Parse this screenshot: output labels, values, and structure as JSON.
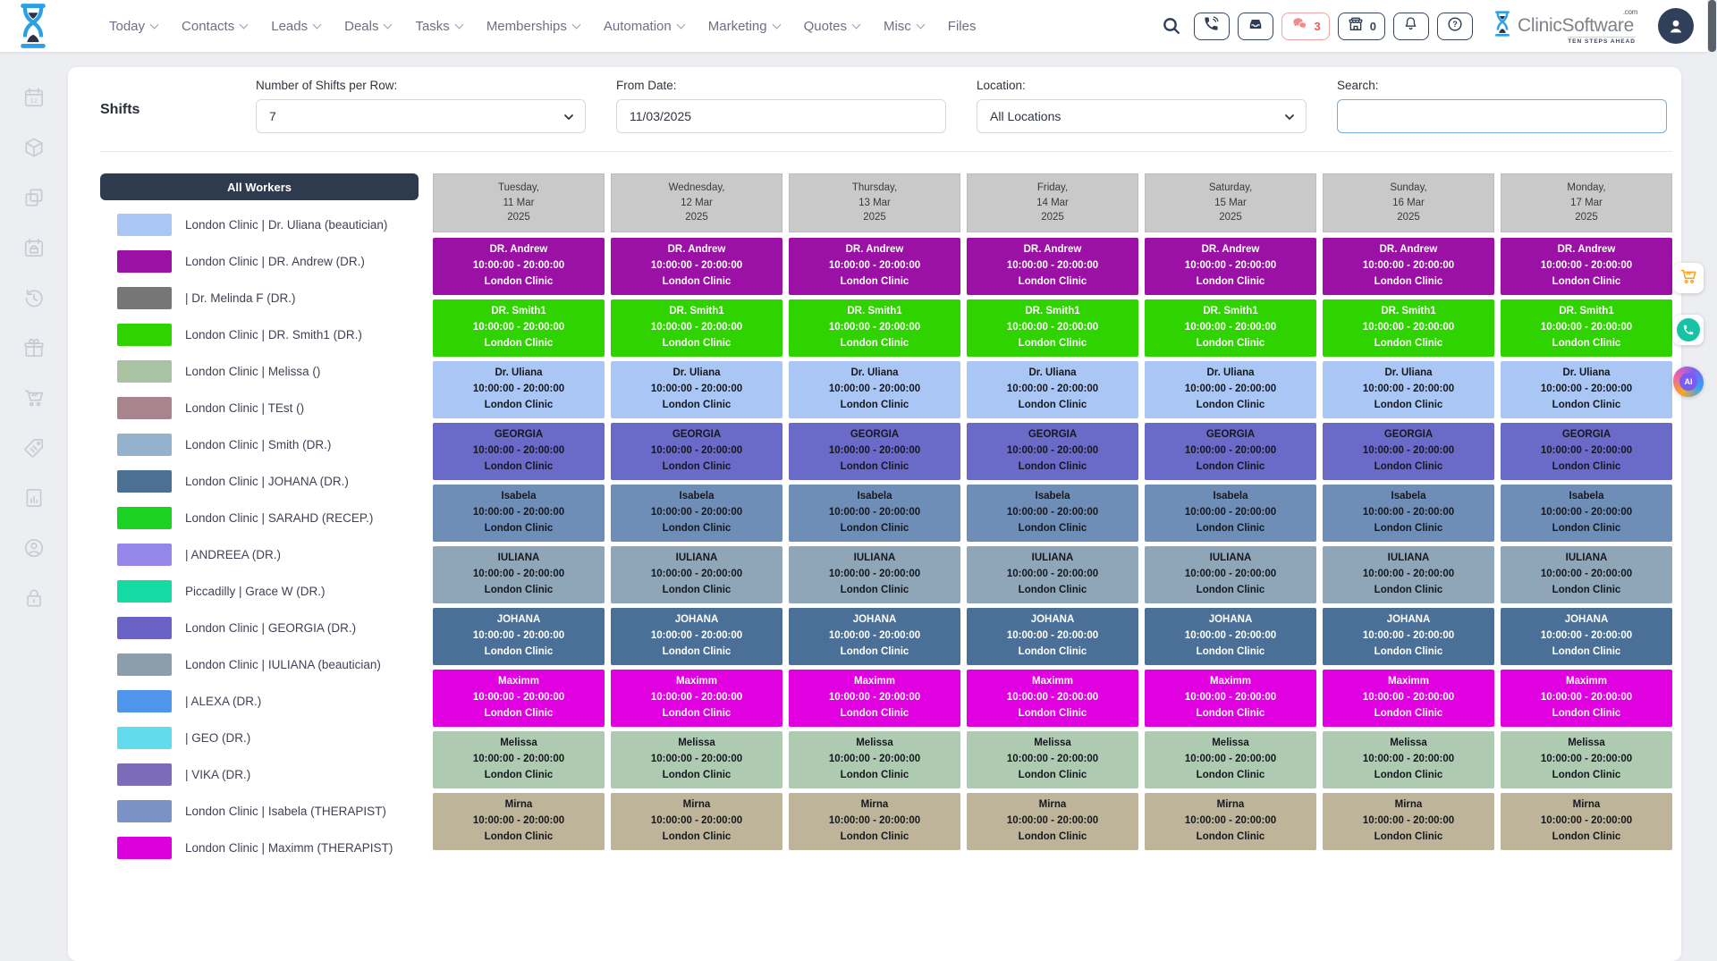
{
  "nav": {
    "items": [
      {
        "label": "Today",
        "chevron": true
      },
      {
        "label": "Contacts",
        "chevron": true
      },
      {
        "label": "Leads",
        "chevron": true
      },
      {
        "label": "Deals",
        "chevron": true
      },
      {
        "label": "Tasks",
        "chevron": true
      },
      {
        "label": "Memberships",
        "chevron": true
      },
      {
        "label": "Automation",
        "chevron": true
      },
      {
        "label": "Marketing",
        "chevron": true
      },
      {
        "label": "Quotes",
        "chevron": true
      },
      {
        "label": "Misc",
        "chevron": true
      },
      {
        "label": "Files",
        "chevron": false
      }
    ]
  },
  "topbar": {
    "chat_count": "3",
    "basket_count": "0",
    "icons": [
      "search-icon",
      "phone-call-icon",
      "inbox-icon",
      "chat-bubbles-icon",
      "storefront-icon",
      "bell-icon",
      "help-icon",
      "user-avatar-icon"
    ],
    "chat_accent": "#F08585",
    "icon_color": "#2E3D52"
  },
  "brand": {
    "name": "ClinicSoftware",
    "com": ".com",
    "tagline": "TEN STEPS AHEAD",
    "logo_icon": "hourglass-icon",
    "logo_blue": "#2AA0E6"
  },
  "rail_icons": [
    "calendar-12",
    "package",
    "copy",
    "calendar-bag",
    "history",
    "gift",
    "cart",
    "price-tag",
    "report",
    "account",
    "lock"
  ],
  "filters": {
    "title": "Shifts",
    "per_row": {
      "label": "Number of Shifts per Row:",
      "value": "7"
    },
    "from_date": {
      "label": "From Date:",
      "value": "11/03/2025"
    },
    "location": {
      "label": "Location:",
      "value": "All Locations"
    },
    "search": {
      "label": "Search:",
      "value": ""
    }
  },
  "workers": {
    "header": "All Workers",
    "items": [
      {
        "color": "#A9C6F5",
        "label": "London Clinic | Dr. Uliana (beautician)"
      },
      {
        "color": "#9B10A5",
        "label": "London Clinic | DR. Andrew (DR.)"
      },
      {
        "color": "#767676",
        "label": "| Dr. Melinda F (DR.)"
      },
      {
        "color": "#2FD400",
        "label": "London Clinic | DR. Smith1 (DR.)"
      },
      {
        "color": "#A9C2A4",
        "label": "London Clinic | Melissa ()"
      },
      {
        "color": "#A9848D",
        "label": "London Clinic | TEst ()"
      },
      {
        "color": "#94B2CE",
        "label": "London Clinic | Smith (DR.)"
      },
      {
        "color": "#4C7093",
        "label": "London Clinic | JOHANA (DR.)"
      },
      {
        "color": "#1BD121",
        "label": "London Clinic | SARAHD (RECEP.)"
      },
      {
        "color": "#9587EA",
        "label": "| ANDREEA (DR.)"
      },
      {
        "color": "#14DBA4",
        "label": "Piccadilly | Grace W (DR.)"
      },
      {
        "color": "#6A62C4",
        "label": "London Clinic | GEORGIA (DR.)"
      },
      {
        "color": "#8C9DAB",
        "label": "London Clinic | IULIANA (beautician)"
      },
      {
        "color": "#4F95EC",
        "label": "| ALEXA (DR.)"
      },
      {
        "color": "#63DBEF",
        "label": "| GEO (DR.)"
      },
      {
        "color": "#7B6BB8",
        "label": "| VIKA (DR.)"
      },
      {
        "color": "#7A92C6",
        "label": "London Clinic | Isabela (THERAPIST)"
      },
      {
        "color": "#DC00DC",
        "label": "London Clinic | Maximm (THERAPIST)"
      }
    ]
  },
  "schedule": {
    "shift": {
      "time": "10:00:00 - 20:00:00",
      "location": "London Clinic"
    },
    "days": [
      {
        "weekday": "Tuesday,",
        "date": "11 Mar",
        "year": "2025"
      },
      {
        "weekday": "Wednesday,",
        "date": "12 Mar",
        "year": "2025"
      },
      {
        "weekday": "Thursday,",
        "date": "13 Mar",
        "year": "2025"
      },
      {
        "weekday": "Friday,",
        "date": "14 Mar",
        "year": "2025"
      },
      {
        "weekday": "Saturday,",
        "date": "15 Mar",
        "year": "2025"
      },
      {
        "weekday": "Sunday,",
        "date": "16 Mar",
        "year": "2025"
      },
      {
        "weekday": "Monday,",
        "date": "17 Mar",
        "year": "2025"
      }
    ],
    "rows": [
      {
        "name": "DR. Andrew",
        "bg": "#9B10A5",
        "text": "#FFFFFF"
      },
      {
        "name": "DR. Smith1",
        "bg": "#2FD400",
        "text": "#FFFFFF"
      },
      {
        "name": "Dr. Uliana",
        "bg": "#A9C6F5",
        "text": "#15181E"
      },
      {
        "name": "GEORGIA",
        "bg": "#6A6AC8",
        "text": "#15181E"
      },
      {
        "name": "Isabela",
        "bg": "#6E8EB8",
        "text": "#15181E"
      },
      {
        "name": "IULIANA",
        "bg": "#8FA6B8",
        "text": "#15181E"
      },
      {
        "name": "JOHANA",
        "bg": "#4A7098",
        "text": "#FFFFFF"
      },
      {
        "name": "Maximm",
        "bg": "#E000E0",
        "text": "#FFFFFF"
      },
      {
        "name": "Melissa",
        "bg": "#AECBB2",
        "text": "#15181E"
      },
      {
        "name": "Mirna",
        "bg": "#BEB499",
        "text": "#15181E"
      }
    ]
  },
  "floating_buttons": [
    {
      "icon": "cart-icon",
      "color": "#F5A623"
    },
    {
      "icon": "phone-icon",
      "color": "#17C3A3"
    },
    {
      "icon": "ai-icon",
      "label": "AI"
    }
  ]
}
